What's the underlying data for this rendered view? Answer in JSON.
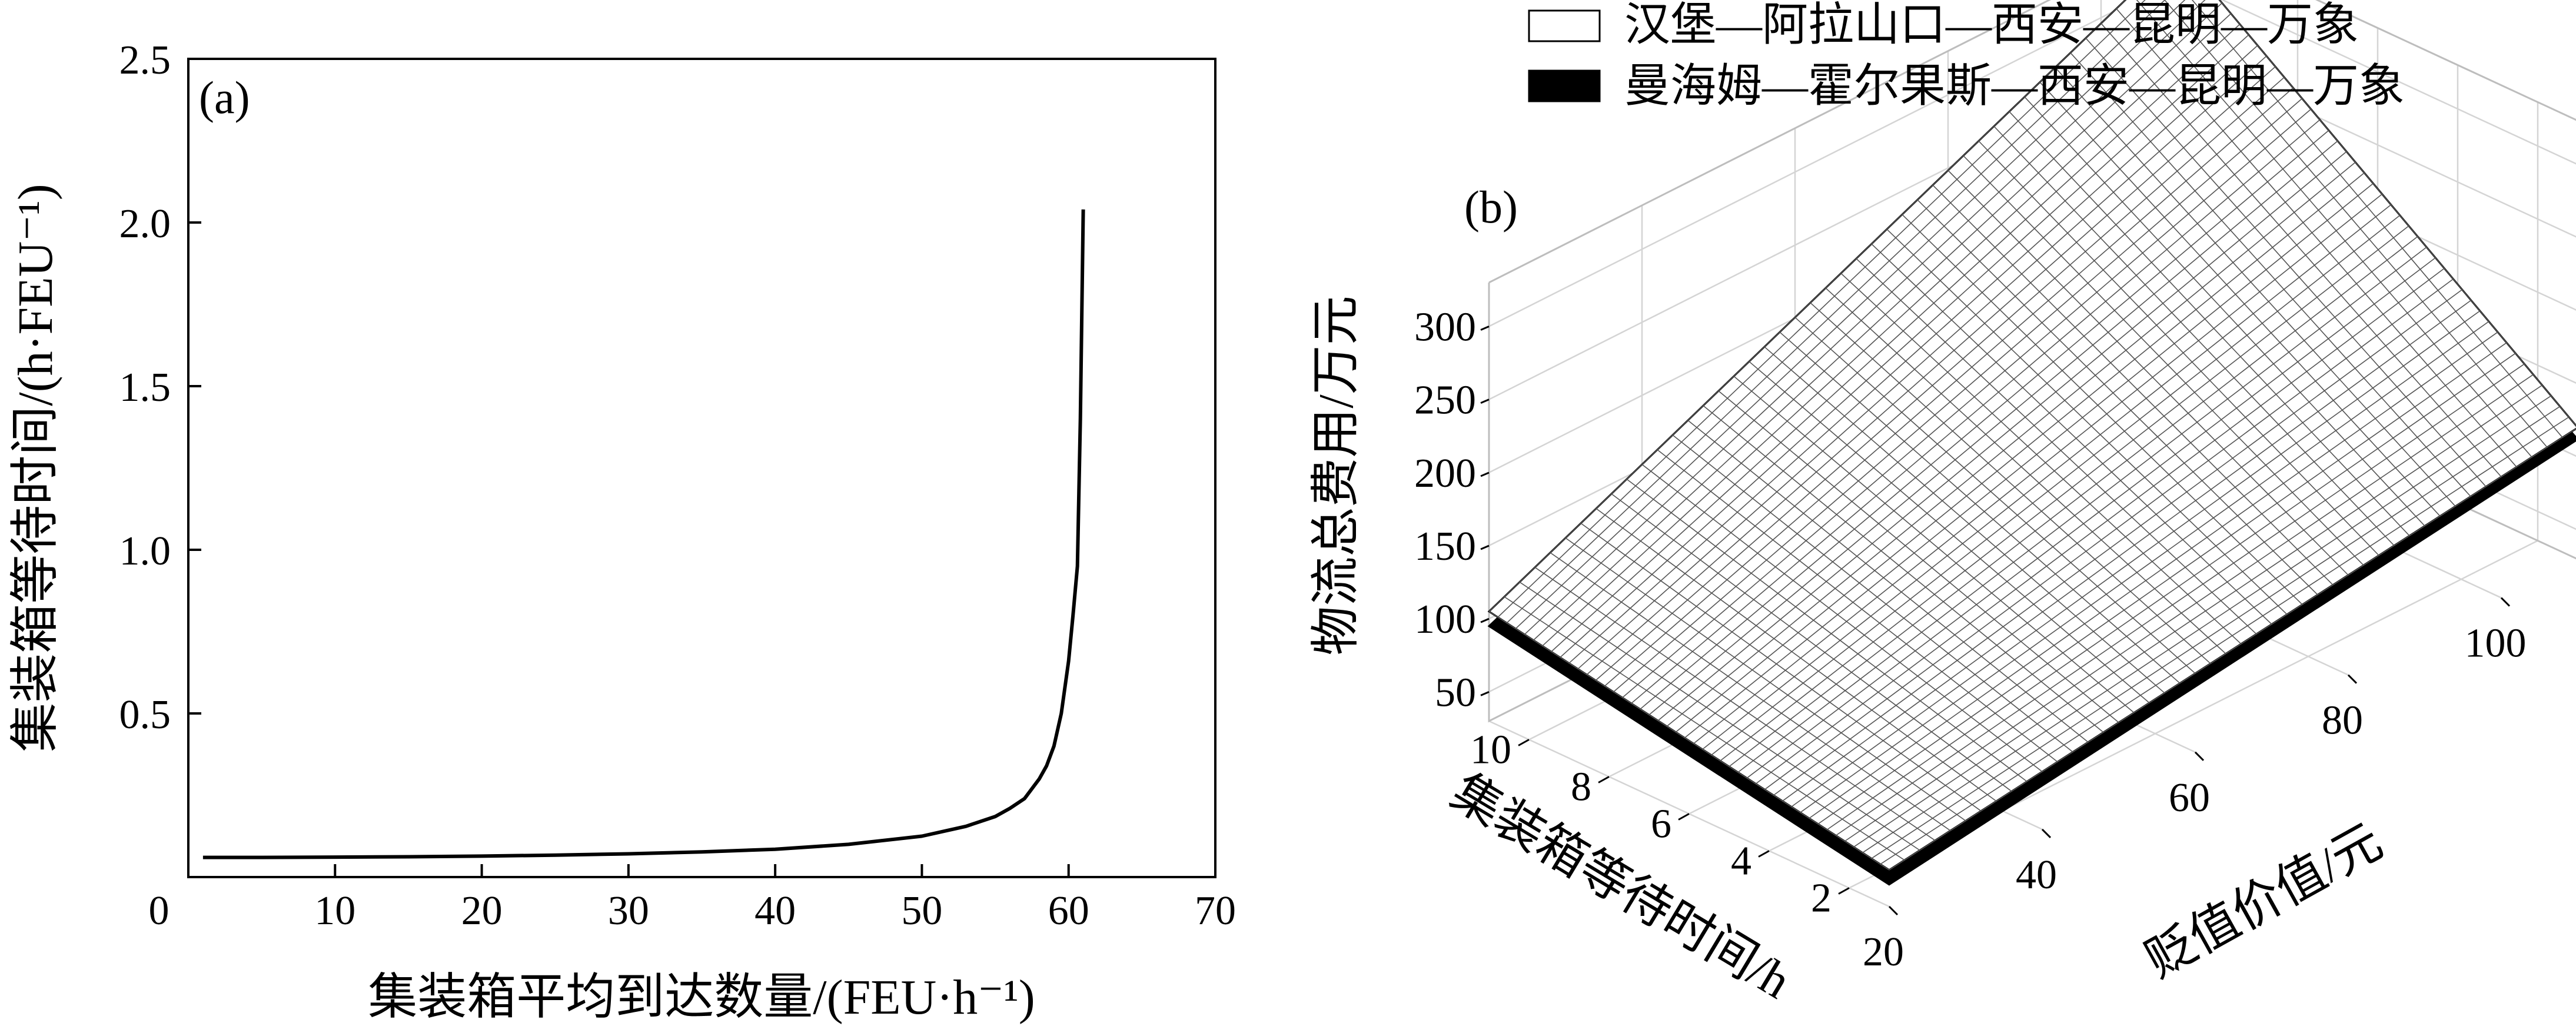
{
  "chart_data": [
    {
      "type": "line",
      "panel_label": "(a)",
      "xlabel": "集装箱平均到达数量/(FEU·h⁻¹)",
      "ylabel": "集装箱等待时间/(h·FEU⁻¹)",
      "xlim": [
        0,
        70
      ],
      "ylim": [
        0,
        2.5
      ],
      "xticks": [
        "0",
        "10",
        "20",
        "30",
        "40",
        "50",
        "60",
        "70"
      ],
      "yticks": [
        "0.5",
        "1.0",
        "1.5",
        "2.0",
        "2.5"
      ],
      "grid": false,
      "series": [
        {
          "x": [
            1,
            5,
            10,
            15,
            20,
            25,
            30,
            35,
            40,
            45,
            50,
            53,
            55,
            56,
            57,
            58,
            58.5,
            59,
            59.5,
            60,
            60.3,
            60.6,
            60.8,
            61.0
          ],
          "y": [
            0.06,
            0.06,
            0.061,
            0.062,
            0.064,
            0.067,
            0.071,
            0.077,
            0.085,
            0.1,
            0.125,
            0.155,
            0.185,
            0.21,
            0.24,
            0.3,
            0.34,
            0.4,
            0.5,
            0.66,
            0.8,
            0.95,
            1.4,
            2.04
          ]
        }
      ]
    },
    {
      "type": "surface",
      "panel_label": "(b)",
      "xlabel": "贬值价值/元",
      "ylabel": "集装箱等待时间/h",
      "zlabel": "物流总费用/万元",
      "xlim": [
        20,
        110
      ],
      "ylim": [
        1,
        11
      ],
      "zlim": [
        30,
        330
      ],
      "xticks": [
        "20",
        "40",
        "60",
        "80",
        "100"
      ],
      "yticks": [
        "2",
        "4",
        "6",
        "8",
        "10"
      ],
      "zticks": [
        "50",
        "100",
        "150",
        "200",
        "250",
        "300"
      ],
      "grid": true,
      "legend_position": "top-right",
      "series": [
        {
          "name": "汉堡—阿拉山口—西安—昆明—万象",
          "surface_style": "white mesh",
          "corners": [
            {
              "x": 20,
              "y": 1,
              "z": 55
            },
            {
              "x": 110,
              "y": 1,
              "z": 120
            },
            {
              "x": 20,
              "y": 11,
              "z": 105
            },
            {
              "x": 110,
              "y": 11,
              "z": 320
            }
          ]
        },
        {
          "name": "曼海姆—霍尔果斯—西安—昆明—万象",
          "surface_style": "black",
          "corners": [
            {
              "x": 20,
              "y": 1,
              "z": 45
            },
            {
              "x": 110,
              "y": 1,
              "z": 112
            },
            {
              "x": 20,
              "y": 11,
              "z": 95
            },
            {
              "x": 110,
              "y": 11,
              "z": 300
            }
          ]
        }
      ]
    }
  ]
}
